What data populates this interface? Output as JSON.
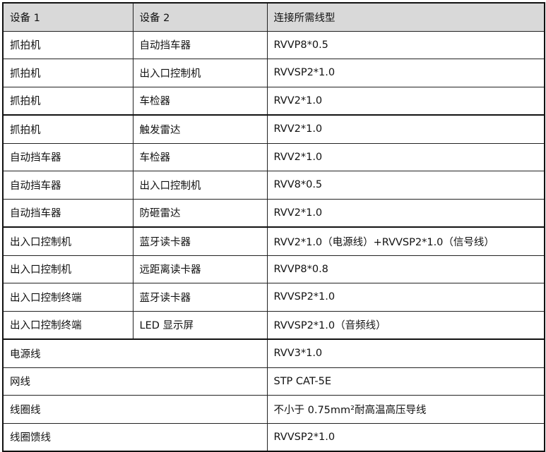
{
  "headers": [
    "设备 1",
    "设备 2",
    "连接所需线型"
  ],
  "rows": [
    [
      "抓拍机",
      "自动挡车器",
      "RVVP8*0.5"
    ],
    [
      "抓拍机",
      "出入口控制机",
      "RVVSP2*1.0"
    ],
    [
      "抓拍机",
      "车检器",
      "RVV2*1.0"
    ],
    [
      "抓拍机",
      "触发雷达",
      "RVV2*1.0"
    ],
    [
      "自动挡车器",
      "车检器",
      "RVV2*1.0"
    ],
    [
      "自动挡车器",
      "出入口控制机",
      "RVV8*0.5"
    ],
    [
      "自动挡车器",
      "防砸雷达",
      "RVV2*1.0"
    ],
    [
      "出入口控制机",
      "蓝牙读卡器",
      "RVV2*1.0（电源线）+RVVSP2*1.0（信号线）"
    ],
    [
      "出入口控制机",
      "远距离读卡器",
      "RVVP8*0.8"
    ],
    [
      "出入口控制终端",
      "蓝牙读卡器",
      "RVVSP2*1.0"
    ],
    [
      "出入口控制终端",
      "LED 显示屏",
      "RVVSP2*1.0（音频线）"
    ]
  ],
  "merged_rows": [
    [
      "电源线",
      "RVV3*1.0"
    ],
    [
      "网线",
      "STP CAT-5E"
    ],
    [
      "线圈线",
      "不小于 0.75mm²耐高温高压导线"
    ],
    [
      "线圈馈线",
      "RVVSP2*1.0"
    ]
  ]
}
